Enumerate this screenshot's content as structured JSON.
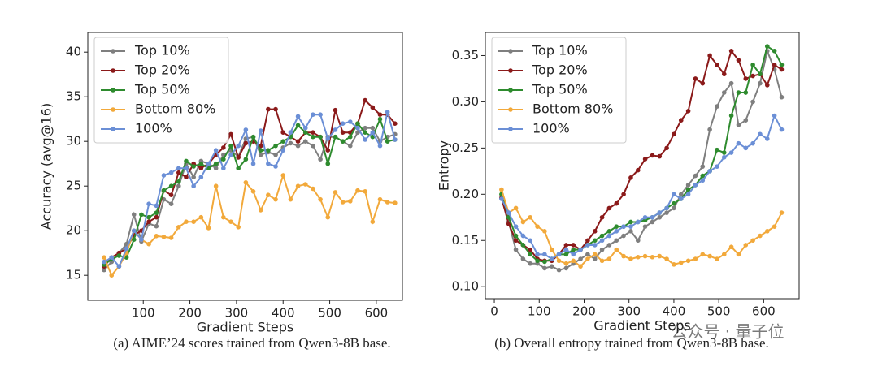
{
  "chart_data": [
    {
      "type": "line",
      "caption": "(a) AIME’24 scores trained from Qwen3-8B base.",
      "xlabel": "Gradient Steps",
      "ylabel": "Accuracy (avg@16)",
      "x": [
        16,
        32,
        48,
        64,
        80,
        96,
        112,
        128,
        144,
        160,
        176,
        192,
        208,
        224,
        240,
        256,
        272,
        288,
        304,
        320,
        336,
        352,
        368,
        384,
        400,
        416,
        432,
        448,
        464,
        480,
        496,
        512,
        528,
        544,
        560,
        576,
        592,
        608,
        624,
        640
      ],
      "xlim": [
        -19,
        656
      ],
      "ylim": [
        12.2,
        42.2
      ],
      "xticks": [
        100,
        200,
        300,
        400,
        500,
        600
      ],
      "yticks": [
        15,
        20,
        25,
        30,
        35,
        40
      ],
      "legend": "upper left",
      "series": [
        {
          "name": "Top 10%",
          "color": "#7f7f7f",
          "values": [
            15.6,
            16.5,
            17.5,
            18.5,
            21.8,
            18.8,
            20.8,
            20.5,
            23.5,
            23,
            25,
            27.5,
            26,
            27.8,
            27.5,
            27,
            28.5,
            29,
            28.3,
            30.3,
            30.5,
            28.5,
            28.8,
            28.5,
            29.3,
            29.8,
            29.5,
            30,
            29.5,
            28,
            30.5,
            30.5,
            30,
            29.5,
            31,
            31.5,
            31.5,
            30,
            30.5,
            30.8
          ]
        },
        {
          "name": "Top 20%",
          "color": "#8b1a1a",
          "values": [
            16,
            17,
            17.5,
            18,
            19.5,
            20,
            21,
            21.5,
            24.5,
            24,
            26.5,
            26,
            27.5,
            27,
            27.5,
            28.5,
            29.3,
            30.8,
            28.2,
            29.8,
            30,
            29.5,
            33.6,
            33.6,
            31,
            30.5,
            30,
            31,
            31,
            30.5,
            29,
            33.5,
            31,
            31,
            32,
            34.6,
            33.8,
            33,
            33,
            32
          ]
        },
        {
          "name": "Top 50%",
          "color": "#2e8b2e",
          "values": [
            16.2,
            16.8,
            17.2,
            17,
            19,
            21.8,
            21.5,
            22,
            24.5,
            25,
            25.5,
            27.8,
            27.2,
            27.5,
            27,
            27.5,
            28,
            29.5,
            27,
            28,
            30.5,
            29,
            29,
            29.5,
            30,
            30.5,
            31.8,
            31,
            30.5,
            30.5,
            27.5,
            30.5,
            30,
            30.5,
            32,
            31,
            30.5,
            32.5,
            30,
            30.2
          ]
        },
        {
          "name": "Bottom 80%",
          "color": "#f2a93b",
          "values": [
            17,
            15,
            16,
            17.5,
            20,
            19,
            18.5,
            19.4,
            19.3,
            19.2,
            20.4,
            21,
            21,
            21.5,
            20.3,
            25,
            21.5,
            21,
            20.4,
            25.4,
            24.4,
            22.3,
            24,
            23.5,
            26.2,
            23.5,
            25,
            25.2,
            24.7,
            23.5,
            21.5,
            24.3,
            23.2,
            23.3,
            24.5,
            24.4,
            21,
            23.5,
            23.2,
            23.1
          ]
        },
        {
          "name": "100%",
          "color": "#6b8fd6",
          "values": [
            16.5,
            17,
            16,
            18,
            20,
            19,
            23,
            22.8,
            26.2,
            26.5,
            27,
            27,
            25,
            26,
            27.5,
            29,
            27,
            28.5,
            29.5,
            31.3,
            27.5,
            31.2,
            27.5,
            27.2,
            29,
            31,
            32.8,
            31.5,
            33,
            33,
            30.3,
            31.3,
            32,
            32.2,
            31.5,
            30.2,
            31,
            29.5,
            33.3,
            30.2
          ]
        }
      ]
    },
    {
      "type": "line",
      "caption": "(b) Overall entropy trained from Qwen3-8B base.",
      "xlabel": "Gradient Steps",
      "ylabel": "Entropy",
      "x": [
        16,
        32,
        48,
        64,
        80,
        96,
        112,
        128,
        144,
        160,
        176,
        192,
        208,
        224,
        240,
        256,
        272,
        288,
        304,
        320,
        336,
        352,
        368,
        384,
        400,
        416,
        432,
        448,
        464,
        480,
        496,
        512,
        528,
        544,
        560,
        576,
        592,
        608,
        624,
        640
      ],
      "xlim": [
        -20,
        679
      ],
      "ylim": [
        0.087,
        0.375
      ],
      "xticks": [
        0,
        100,
        200,
        300,
        400,
        500,
        600
      ],
      "yticks": [
        {
          "value": 0.1,
          "label": "0.10"
        },
        {
          "value": 0.15,
          "label": "0.15"
        },
        {
          "value": 0.2,
          "label": "0.20"
        },
        {
          "value": 0.25,
          "label": "0.25"
        },
        {
          "value": 0.3,
          "label": "0.30"
        },
        {
          "value": 0.35,
          "label": "0.35"
        }
      ],
      "legend": "upper left",
      "series": [
        {
          "name": "Top 10%",
          "color": "#7f7f7f",
          "values": [
            0.196,
            0.17,
            0.14,
            0.13,
            0.125,
            0.125,
            0.12,
            0.122,
            0.118,
            0.12,
            0.125,
            0.13,
            0.135,
            0.13,
            0.14,
            0.145,
            0.15,
            0.155,
            0.16,
            0.15,
            0.165,
            0.17,
            0.175,
            0.18,
            0.185,
            0.2,
            0.21,
            0.22,
            0.23,
            0.27,
            0.295,
            0.31,
            0.32,
            0.275,
            0.28,
            0.3,
            0.32,
            0.355,
            0.335,
            0.305
          ]
        },
        {
          "name": "Top 20%",
          "color": "#8b1a1a",
          "values": [
            0.196,
            0.168,
            0.15,
            0.145,
            0.14,
            0.13,
            0.128,
            0.128,
            0.135,
            0.145,
            0.145,
            0.14,
            0.15,
            0.16,
            0.175,
            0.185,
            0.19,
            0.2,
            0.218,
            0.226,
            0.238,
            0.242,
            0.241,
            0.25,
            0.265,
            0.28,
            0.29,
            0.325,
            0.32,
            0.35,
            0.34,
            0.33,
            0.355,
            0.345,
            0.325,
            0.328,
            0.33,
            0.318,
            0.34,
            0.335
          ]
        },
        {
          "name": "Top 50%",
          "color": "#2e8b2e",
          "values": [
            0.2,
            0.175,
            0.155,
            0.145,
            0.135,
            0.128,
            0.127,
            0.13,
            0.135,
            0.135,
            0.14,
            0.14,
            0.145,
            0.15,
            0.155,
            0.16,
            0.165,
            0.165,
            0.17,
            0.17,
            0.172,
            0.175,
            0.18,
            0.185,
            0.19,
            0.195,
            0.205,
            0.21,
            0.22,
            0.225,
            0.248,
            0.245,
            0.285,
            0.31,
            0.31,
            0.34,
            0.33,
            0.36,
            0.355,
            0.34
          ]
        },
        {
          "name": "Bottom 80%",
          "color": "#f2a93b",
          "values": [
            0.205,
            0.18,
            0.185,
            0.17,
            0.175,
            0.165,
            0.16,
            0.14,
            0.128,
            0.125,
            0.128,
            0.122,
            0.13,
            0.135,
            0.128,
            0.13,
            0.14,
            0.133,
            0.13,
            0.132,
            0.133,
            0.132,
            0.133,
            0.13,
            0.124,
            0.126,
            0.128,
            0.13,
            0.135,
            0.133,
            0.13,
            0.135,
            0.143,
            0.135,
            0.145,
            0.15,
            0.155,
            0.16,
            0.165,
            0.18
          ]
        },
        {
          "name": "100%",
          "color": "#6b8fd6",
          "values": [
            0.195,
            0.18,
            0.165,
            0.155,
            0.15,
            0.135,
            0.135,
            0.13,
            0.135,
            0.14,
            0.135,
            0.14,
            0.145,
            0.145,
            0.15,
            0.155,
            0.16,
            0.165,
            0.165,
            0.17,
            0.175,
            0.175,
            0.18,
            0.185,
            0.2,
            0.195,
            0.2,
            0.21,
            0.215,
            0.225,
            0.23,
            0.24,
            0.245,
            0.255,
            0.25,
            0.255,
            0.265,
            0.26,
            0.285,
            0.27
          ]
        }
      ]
    }
  ],
  "watermark": "公众号 · 量子位"
}
